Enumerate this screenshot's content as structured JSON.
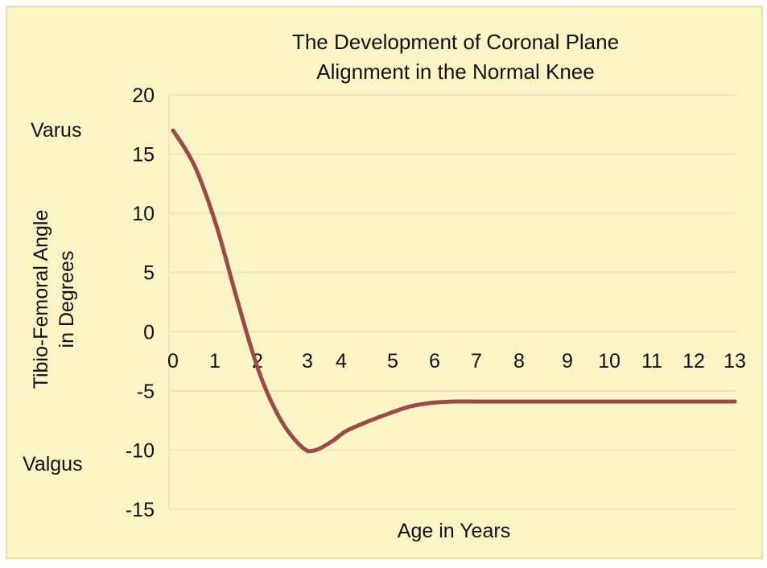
{
  "colors": {
    "background": "#fbf5c6",
    "frame": "#e9e0a6",
    "gridline": "#ece6bc",
    "series": "#9c4a47"
  },
  "chart_data": {
    "type": "line",
    "title": [
      "The Development of Coronal Plane",
      "Alignment in the Normal Knee"
    ],
    "xlabel": "Age in Years",
    "ylabel": [
      "Tibio-Femoral Angle",
      "in Degrees"
    ],
    "ylim": [
      -15,
      20
    ],
    "xlim": [
      0,
      13
    ],
    "y_ticks": [
      20,
      15,
      10,
      5,
      0,
      -5,
      -10,
      -15
    ],
    "x_ticks": [
      0,
      1,
      2,
      3,
      4,
      5,
      6,
      7,
      8,
      9,
      10,
      11,
      12,
      13
    ],
    "grid": true,
    "annotations": {
      "top": "Varus",
      "bottom": "Valgus"
    },
    "series": [
      {
        "x": [
          0,
          0.5,
          1,
          1.5,
          2,
          2.5,
          3,
          3.3,
          3.7,
          4,
          4.5,
          5,
          5.5,
          6,
          6.5,
          7,
          8,
          9,
          10,
          11,
          12,
          13
        ],
        "y": [
          17,
          14,
          9,
          2.5,
          -3.5,
          -7.5,
          -9.8,
          -10,
          -9.2,
          -8.4,
          -7.6,
          -6.9,
          -6.3,
          -6.0,
          -5.9,
          -5.9,
          -5.9,
          -5.9,
          -5.9,
          -5.9,
          -5.9,
          -5.9
        ]
      }
    ]
  }
}
